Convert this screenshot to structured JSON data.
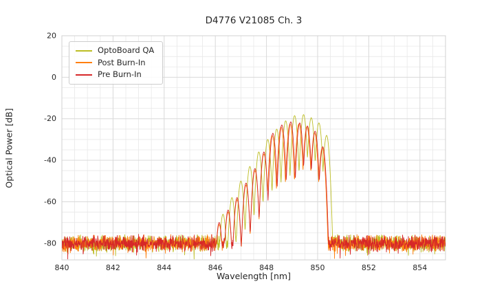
{
  "chart_data": {
    "type": "line",
    "title": "D4776 V21085 Ch. 3",
    "xlabel": "Wavelength [nm]",
    "ylabel": "Optical Power [dB]",
    "xlim": [
      840,
      855
    ],
    "ylim": [
      -88,
      20
    ],
    "xticks": [
      840,
      842,
      844,
      846,
      848,
      850,
      852,
      854
    ],
    "yticks": [
      20,
      0,
      -20,
      -40,
      -60,
      -80
    ],
    "grid": {
      "on": true,
      "x_minor_step": 0.5,
      "y_minor_step": 5,
      "major_color": "#d9d9d9",
      "minor_color": "#e8e8e8"
    },
    "legend_position": "upper left",
    "noise": {
      "floor": -80,
      "amp": 4.5,
      "step": 0.01
    },
    "mode_halfwidth": 0.175,
    "valley_drop": 28,
    "series": [
      {
        "name": "OptoBoard QA",
        "color": "#bcbd22",
        "seed": 11,
        "peaks": [
          [
            846.3,
            -66
          ],
          [
            846.65,
            -58
          ],
          [
            847.0,
            -50
          ],
          [
            847.35,
            -43
          ],
          [
            847.7,
            -36
          ],
          [
            848.05,
            -30
          ],
          [
            848.4,
            -25
          ],
          [
            848.75,
            -21
          ],
          [
            849.1,
            -18.5
          ],
          [
            849.45,
            -18
          ],
          [
            849.75,
            -19.5
          ],
          [
            850.05,
            -22
          ],
          [
            850.35,
            -28
          ]
        ]
      },
      {
        "name": "Post Burn-In",
        "color": "#ff7f0e",
        "seed": 22,
        "peaks": [
          [
            846.15,
            -71
          ],
          [
            846.5,
            -65
          ],
          [
            846.85,
            -59
          ],
          [
            847.2,
            -52
          ],
          [
            847.55,
            -45
          ],
          [
            847.9,
            -37
          ],
          [
            848.22,
            -28
          ],
          [
            848.57,
            -24
          ],
          [
            848.92,
            -22.5
          ],
          [
            849.27,
            -22.5
          ],
          [
            849.58,
            -24
          ],
          [
            849.88,
            -27
          ],
          [
            850.18,
            -34
          ]
        ]
      },
      {
        "name": "Pre Burn-In",
        "color": "#d62728",
        "seed": 33,
        "peaks": [
          [
            846.15,
            -70
          ],
          [
            846.5,
            -64
          ],
          [
            846.85,
            -58
          ],
          [
            847.2,
            -51
          ],
          [
            847.55,
            -44
          ],
          [
            847.9,
            -36
          ],
          [
            848.25,
            -27
          ],
          [
            848.6,
            -23
          ],
          [
            848.95,
            -21.5
          ],
          [
            849.3,
            -22
          ],
          [
            849.6,
            -23.5
          ],
          [
            849.9,
            -26
          ],
          [
            850.2,
            -33.5
          ]
        ]
      }
    ]
  }
}
